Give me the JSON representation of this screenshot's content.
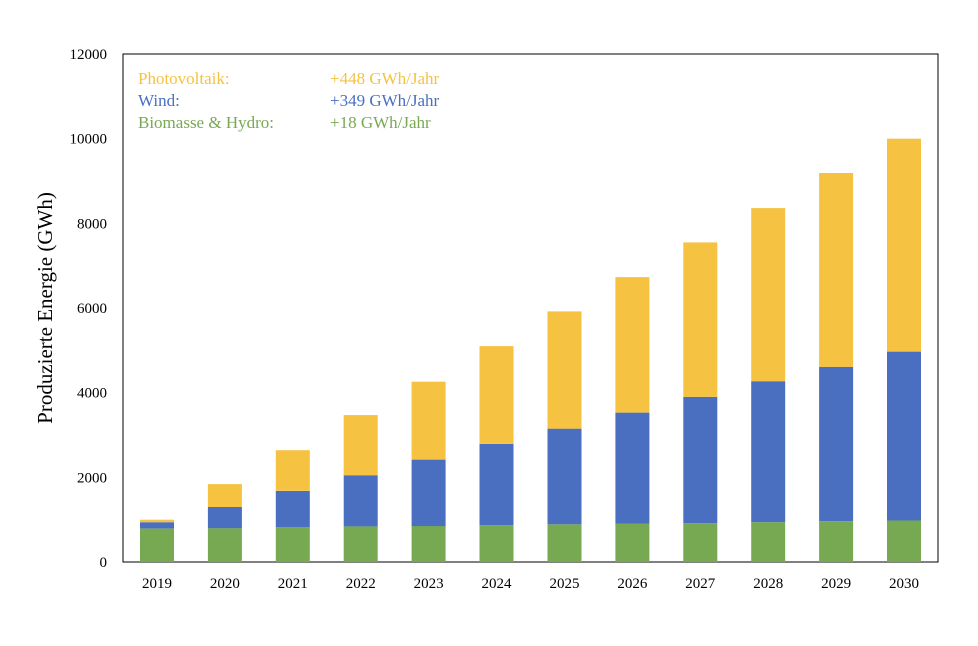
{
  "chart_data": {
    "type": "bar",
    "stacked": true,
    "categories": [
      "2019",
      "2020",
      "2021",
      "2022",
      "2023",
      "2024",
      "2025",
      "2026",
      "2027",
      "2028",
      "2029",
      "2030"
    ],
    "series": [
      {
        "name": "Biomasse & Hydro:",
        "color": "#77a952",
        "values": [
          790,
          800,
          820,
          840,
          850,
          870,
          890,
          910,
          920,
          940,
          960,
          980
        ]
      },
      {
        "name": "Wind:",
        "color": "#4a6fc1",
        "values": [
          150,
          500,
          860,
          1210,
          1570,
          1920,
          2260,
          2620,
          2980,
          3330,
          3650,
          3990
        ]
      },
      {
        "name": "Photovoltaik:",
        "color": "#f5c242",
        "values": [
          60,
          540,
          960,
          1420,
          1840,
          2310,
          2770,
          3200,
          3650,
          4090,
          4580,
          5030
        ]
      }
    ],
    "legend": [
      {
        "label": "Photovoltaik:",
        "rate": "+448 GWh/Jahr",
        "color": "#f5c242"
      },
      {
        "label": "Wind:",
        "rate": "+349 GWh/Jahr",
        "color": "#4a6fc1"
      },
      {
        "label": "Biomasse & Hydro:",
        "rate": "+18 GWh/Jahr",
        "color": "#77a952"
      }
    ],
    "ylabel": "Produzierte Energie (GWh)",
    "xlabel": "",
    "ylim": [
      0,
      12000
    ],
    "yticks": [
      0,
      2000,
      4000,
      6000,
      8000,
      10000,
      12000
    ],
    "legend_position": "top-left inside",
    "grid": false
  }
}
